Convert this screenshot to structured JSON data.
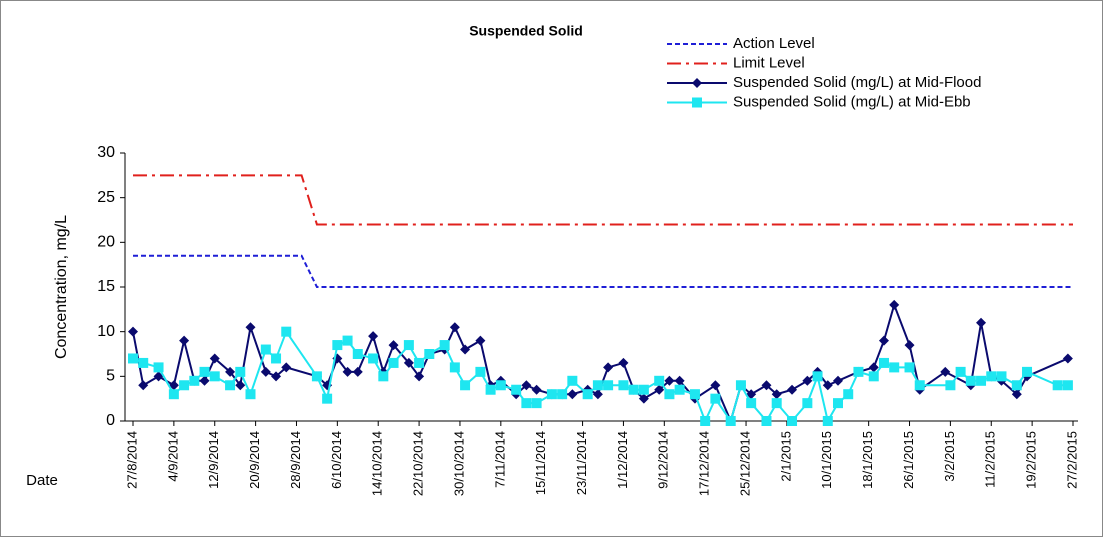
{
  "chart_data": {
    "type": "line",
    "title": "Suspended Solid",
    "y_label": "Concentration, mg/L",
    "x_label": "Date",
    "ylim": [
      0,
      30
    ],
    "yticks": [
      0,
      5,
      10,
      15,
      20,
      25,
      30
    ],
    "xlim": [
      "27/8/2014",
      "27/2/2015"
    ],
    "xticks": [
      "27/8/2014",
      "4/9/2014",
      "12/9/2014",
      "20/9/2014",
      "28/9/2014",
      "6/10/2014",
      "14/10/2014",
      "22/10/2014",
      "30/10/2014",
      "7/11/2014",
      "15/11/2014",
      "23/11/2014",
      "1/12/2014",
      "9/12/2014",
      "17/12/2014",
      "25/12/2014",
      "2/1/2015",
      "10/1/2015",
      "18/1/2015",
      "26/1/2015",
      "3/2/2015",
      "11/2/2015",
      "19/2/2015",
      "27/2/2015"
    ],
    "legend": "top-right",
    "series": [
      {
        "name": "Action Level",
        "color": "#1f1fd6",
        "line_style": "dashed",
        "x": [
          "27/8/2014",
          "29/9/2014",
          "2/10/2014",
          "27/2/2015"
        ],
        "values": [
          18.5,
          18.5,
          15,
          15
        ]
      },
      {
        "name": "Limit Level",
        "color": "#e0201c",
        "line_style": "dashdot",
        "x": [
          "27/8/2014",
          "29/9/2014",
          "2/10/2014",
          "27/2/2015"
        ],
        "values": [
          27.5,
          27.5,
          22,
          22
        ]
      },
      {
        "name": "Suspended Solid (mg/L) at Mid-Flood",
        "color": "#0a0a6e",
        "line_style": "solid",
        "marker": "diamond",
        "x": [
          "27/8/2014",
          "29/8/2014",
          "1/9/2014",
          "4/9/2014",
          "6/9/2014",
          "8/9/2014",
          "10/9/2014",
          "12/9/2014",
          "15/9/2014",
          "17/9/2014",
          "19/9/2014",
          "22/9/2014",
          "24/9/2014",
          "26/9/2014",
          "2/10/2014",
          "4/10/2014",
          "6/10/2014",
          "8/10/2014",
          "10/10/2014",
          "13/10/2014",
          "15/10/2014",
          "17/10/2014",
          "20/10/2014",
          "22/10/2014",
          "24/10/2014",
          "27/10/2014",
          "29/10/2014",
          "31/10/2014",
          "3/11/2014",
          "5/11/2014",
          "7/11/2014",
          "10/11/2014",
          "12/11/2014",
          "14/11/2014",
          "17/11/2014",
          "19/11/2014",
          "21/11/2014",
          "24/11/2014",
          "26/11/2014",
          "28/11/2014",
          "1/12/2014",
          "3/12/2014",
          "5/12/2014",
          "8/12/2014",
          "10/12/2014",
          "12/12/2014",
          "15/12/2014",
          "19/12/2014",
          "22/12/2014",
          "24/12/2014",
          "26/12/2014",
          "29/12/2014",
          "31/12/2014",
          "3/1/2015",
          "6/1/2015",
          "8/1/2015",
          "10/1/2015",
          "12/1/2015",
          "16/1/2015",
          "19/1/2015",
          "21/1/2015",
          "23/1/2015",
          "26/1/2015",
          "28/1/2015",
          "2/2/2015",
          "7/2/2015",
          "9/2/2015",
          "11/2/2015",
          "13/2/2015",
          "16/2/2015",
          "18/2/2015",
          "26/2/2015"
        ],
        "values": [
          10,
          4,
          5,
          4,
          9,
          4.5,
          4.5,
          7,
          5.5,
          4,
          10.5,
          5.5,
          5,
          6,
          5,
          4,
          7,
          5.5,
          5.5,
          9.5,
          5.5,
          8.5,
          6.5,
          5,
          7.5,
          8,
          10.5,
          8,
          9,
          4,
          4.5,
          3,
          4,
          3.5,
          3,
          3,
          3,
          3.5,
          3,
          6,
          6.5,
          3.5,
          2.5,
          3.5,
          4.5,
          4.5,
          2.5,
          4,
          0,
          4,
          3,
          4,
          3,
          3.5,
          4.5,
          5.5,
          4,
          4.5,
          5.5,
          6,
          9,
          13,
          8.5,
          3.5,
          5.5,
          4,
          11,
          5,
          4.5,
          3,
          5,
          7
        ]
      },
      {
        "name": "Suspended Solid (mg/L) at Mid-Ebb",
        "color": "#1ee6f0",
        "line_style": "solid",
        "marker": "square",
        "x": [
          "27/8/2014",
          "29/8/2014",
          "1/9/2014",
          "4/9/2014",
          "6/9/2014",
          "8/9/2014",
          "10/9/2014",
          "12/9/2014",
          "15/9/2014",
          "17/9/2014",
          "19/9/2014",
          "22/9/2014",
          "24/9/2014",
          "26/9/2014",
          "2/10/2014",
          "4/10/2014",
          "6/10/2014",
          "8/10/2014",
          "10/10/2014",
          "13/10/2014",
          "15/10/2014",
          "17/10/2014",
          "20/10/2014",
          "22/10/2014",
          "24/10/2014",
          "27/10/2014",
          "29/10/2014",
          "31/10/2014",
          "3/11/2014",
          "5/11/2014",
          "7/11/2014",
          "10/11/2014",
          "12/11/2014",
          "14/11/2014",
          "17/11/2014",
          "19/11/2014",
          "21/11/2014",
          "24/11/2014",
          "26/11/2014",
          "28/11/2014",
          "1/12/2014",
          "3/12/2014",
          "5/12/2014",
          "8/12/2014",
          "10/12/2014",
          "12/12/2014",
          "15/12/2014",
          "17/12/2014",
          "19/12/2014",
          "22/12/2014",
          "24/12/2014",
          "26/12/2014",
          "29/12/2014",
          "31/12/2014",
          "3/1/2015",
          "6/1/2015",
          "8/1/2015",
          "10/1/2015",
          "12/1/2015",
          "14/1/2015",
          "16/1/2015",
          "19/1/2015",
          "21/1/2015",
          "23/1/2015",
          "26/1/2015",
          "28/1/2015",
          "3/2/2015",
          "5/2/2015",
          "7/2/2015",
          "9/2/2015",
          "11/2/2015",
          "13/2/2015",
          "16/2/2015",
          "18/2/2015",
          "24/2/2015",
          "26/2/2015"
        ],
        "values": [
          7,
          6.5,
          6,
          3,
          4,
          4.5,
          5.5,
          5,
          4,
          5.5,
          3,
          8,
          7,
          10,
          5,
          2.5,
          8.5,
          9,
          7.5,
          7,
          5,
          6.5,
          8.5,
          6.5,
          7.5,
          8.5,
          6,
          4,
          5.5,
          3.5,
          4,
          3.5,
          2,
          2,
          3,
          3,
          4.5,
          3,
          4,
          4,
          4,
          3.5,
          3.5,
          4.5,
          3,
          3.5,
          3,
          0,
          2.5,
          0,
          4,
          2,
          0,
          2,
          0,
          2,
          5,
          0,
          2,
          3,
          5.5,
          5,
          6.5,
          6,
          6,
          4,
          4,
          5.5,
          4.5,
          4.5,
          5,
          5,
          4,
          5.5,
          4,
          4
        ]
      }
    ]
  }
}
